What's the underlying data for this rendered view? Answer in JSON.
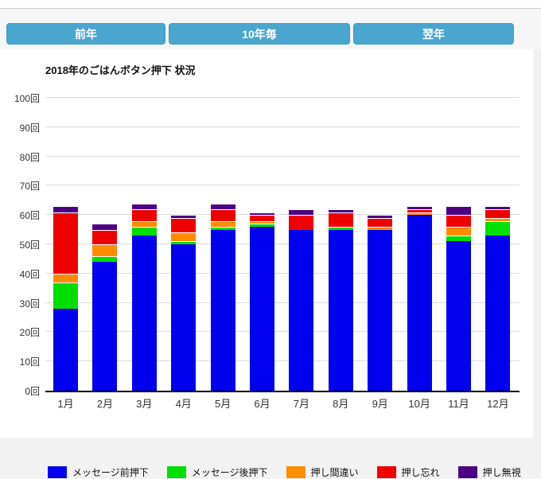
{
  "toolbar": {
    "buttons": [
      {
        "label": "前年"
      },
      {
        "label": "10年毎"
      },
      {
        "label": "翌年"
      }
    ]
  },
  "chart_data": {
    "type": "bar",
    "stacked": true,
    "title": "2018年のごはんボタン押下 状況",
    "unit": "回",
    "ylim": [
      0,
      100
    ],
    "y_ticks": [
      0,
      10,
      20,
      30,
      40,
      50,
      60,
      70,
      80,
      90,
      100
    ],
    "grid": true,
    "legend_position": "bottom",
    "categories": [
      "1月",
      "2月",
      "3月",
      "4月",
      "5月",
      "6月",
      "7月",
      "8月",
      "9月",
      "10月",
      "11月",
      "12月"
    ],
    "series": [
      {
        "name": "メッセージ前押下",
        "color": "#0000ee",
        "values": [
          28,
          44,
          53,
          50,
          55,
          56,
          55,
          55,
          55,
          60,
          51,
          53
        ]
      },
      {
        "name": "メッセージ後押下",
        "color": "#00dd00",
        "values": [
          9,
          2,
          3,
          1,
          1,
          1,
          0,
          1,
          0,
          0,
          2,
          5
        ]
      },
      {
        "name": "押し間違い",
        "color": "#ff8c00",
        "values": [
          3,
          4,
          2,
          3,
          2,
          1,
          0,
          0,
          1,
          1,
          3,
          1
        ]
      },
      {
        "name": "押し忘れ",
        "color": "#ee0000",
        "values": [
          21,
          5,
          4,
          5,
          4,
          2,
          5,
          5,
          3,
          1,
          4,
          3
        ]
      },
      {
        "name": "押し無視",
        "color": "#4b0082",
        "values": [
          2,
          2,
          2,
          1,
          2,
          1,
          2,
          1,
          1,
          1,
          3,
          1
        ]
      }
    ],
    "totals": [
      63,
      57,
      64,
      60,
      64,
      61,
      62,
      62,
      60,
      63,
      63,
      63
    ]
  },
  "colors": {
    "accent_button": "#4aa6ce",
    "gridline": "#dcdcdc",
    "axis": "#000000"
  }
}
